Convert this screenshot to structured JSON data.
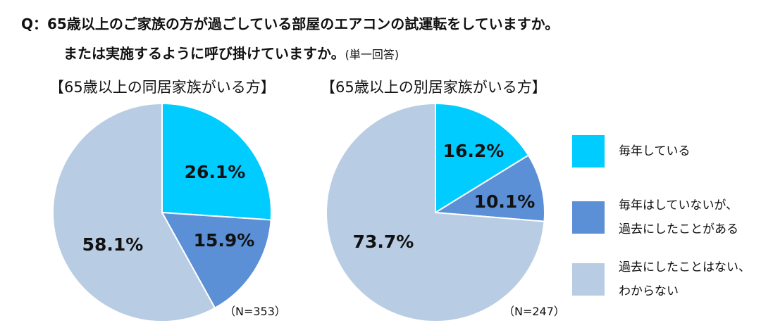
{
  "question": {
    "line1": "Q：65歳以上のご家族の方が過ごしている部屋のエアコンの試運転をしていますか。",
    "line2": "または実施するように呼び掛けていますか。",
    "note": "(単一回答)"
  },
  "colors": {
    "every_year": "#00CCFF",
    "not_every_year_but_done": "#5B8FD6",
    "never": "#B8CCE4"
  },
  "legend": [
    {
      "label": "毎年している",
      "color": "#00CCFF"
    },
    {
      "label": "毎年はしていないが、\n過去にしたことがある",
      "color": "#5B8FD6"
    },
    {
      "label": "過去にしたことはない、\nわからない",
      "color": "#B8CCE4"
    }
  ],
  "chart_data": [
    {
      "type": "pie",
      "title": "【65歳以上の同居家族がいる方】",
      "n_label": "（N=353）",
      "categories": [
        "毎年している",
        "毎年はしていないが、過去にしたことがある",
        "過去にしたことはない、わからない"
      ],
      "values": [
        26.1,
        15.9,
        58.1
      ],
      "labels": [
        "26.1%",
        "15.9%",
        "58.1%"
      ],
      "colors": [
        "#00CCFF",
        "#5B8FD6",
        "#B8CCE4"
      ]
    },
    {
      "type": "pie",
      "title": "【65歳以上の別居家族がいる方】",
      "n_label": "（N=247）",
      "categories": [
        "毎年している",
        "毎年はしていないが、過去にしたことがある",
        "過去にしたことはない、わからない"
      ],
      "values": [
        16.2,
        10.1,
        73.7
      ],
      "labels": [
        "16.2%",
        "10.1%",
        "73.7%"
      ],
      "colors": [
        "#00CCFF",
        "#5B8FD6",
        "#B8CCE4"
      ]
    }
  ]
}
